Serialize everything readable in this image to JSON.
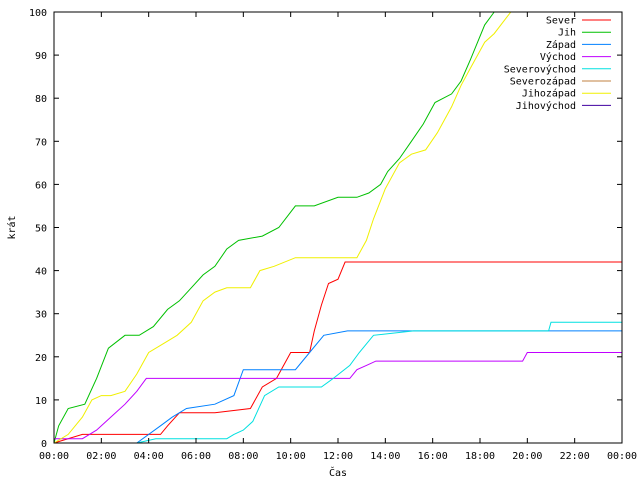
{
  "chart_data": {
    "type": "line",
    "title": "",
    "xlabel": "Čas",
    "ylabel": "krát",
    "xlim": [
      0,
      24
    ],
    "ylim": [
      0,
      100
    ],
    "x_ticks": [
      {
        "value": 0,
        "label": "00:00"
      },
      {
        "value": 2,
        "label": "02:00"
      },
      {
        "value": 4,
        "label": "04:00"
      },
      {
        "value": 6,
        "label": "06:00"
      },
      {
        "value": 8,
        "label": "08:00"
      },
      {
        "value": 10,
        "label": "10:00"
      },
      {
        "value": 12,
        "label": "12:00"
      },
      {
        "value": 14,
        "label": "14:00"
      },
      {
        "value": 16,
        "label": "16:00"
      },
      {
        "value": 18,
        "label": "18:00"
      },
      {
        "value": 20,
        "label": "20:00"
      },
      {
        "value": 22,
        "label": "22:00"
      },
      {
        "value": 24,
        "label": "00:00"
      }
    ],
    "y_ticks": [
      0,
      10,
      20,
      30,
      40,
      50,
      60,
      70,
      80,
      90,
      100
    ],
    "legend_position": "top-right",
    "series": [
      {
        "name": "Sever",
        "color": "#ff0000",
        "x": [
          0,
          1.2,
          4.5,
          4.8,
          5.3,
          6.8,
          8.3,
          8.8,
          9.4,
          10.0,
          10.8,
          11.0,
          11.3,
          11.6,
          12.0,
          12.3,
          24
        ],
        "y": [
          0,
          2,
          2,
          4,
          7,
          7,
          8,
          13,
          15,
          21,
          21,
          26,
          32,
          37,
          38,
          42,
          42
        ]
      },
      {
        "name": "Jih",
        "color": "#00c000",
        "x": [
          0,
          0.2,
          0.6,
          1.3,
          1.8,
          2.3,
          3.0,
          3.6,
          4.2,
          4.8,
          5.3,
          5.8,
          6.3,
          6.8,
          7.3,
          7.8,
          8.8,
          9.5,
          10.2,
          11.0,
          12.0,
          12.8,
          13.3,
          13.8,
          14.1,
          14.6,
          15.1,
          15.6,
          16.1,
          16.8,
          17.2,
          17.6,
          18.2,
          18.6
        ],
        "y": [
          0,
          4,
          8,
          9,
          15,
          22,
          25,
          25,
          27,
          31,
          33,
          36,
          39,
          41,
          45,
          47,
          48,
          50,
          55,
          55,
          57,
          57,
          58,
          60,
          63,
          66,
          70,
          74,
          79,
          81,
          84,
          89,
          97,
          100
        ]
      },
      {
        "name": "Západ",
        "color": "#0080ff",
        "x": [
          0,
          3.5,
          4.5,
          5.0,
          5.6,
          6.8,
          7.6,
          8.0,
          8.5,
          10.2,
          10.8,
          11.4,
          12.4,
          15.1,
          24
        ],
        "y": [
          0,
          0,
          4,
          6,
          8,
          9,
          11,
          17,
          17,
          17,
          21,
          25,
          26,
          26,
          26
        ]
      },
      {
        "name": "Východ",
        "color": "#c000ff",
        "x": [
          0,
          1.2,
          1.8,
          2.4,
          3.0,
          3.5,
          3.9,
          8.0,
          12.5,
          12.8,
          13.2,
          13.6,
          14.2,
          19.8,
          20.0,
          24
        ],
        "y": [
          1,
          1,
          3,
          6,
          9,
          12,
          15,
          15,
          15,
          17,
          18,
          19,
          19,
          19,
          21,
          21
        ]
      },
      {
        "name": "Severovýchod",
        "color": "#00e0e0",
        "x": [
          0,
          3.5,
          4.3,
          7.3,
          7.6,
          8.0,
          8.4,
          8.9,
          9.5,
          10.2,
          11.3,
          11.8,
          12.5,
          12.9,
          13.5,
          15.2,
          17.0,
          20.9,
          21.0,
          24
        ],
        "y": [
          0,
          0,
          1,
          1,
          2,
          3,
          5,
          11,
          13,
          13,
          13,
          15,
          18,
          21,
          25,
          26,
          26,
          26,
          28,
          28
        ]
      },
      {
        "name": "Severozápad",
        "color": "#c08040",
        "x": [
          0,
          24
        ],
        "y": [
          0,
          0
        ]
      },
      {
        "name": "Jihozápad",
        "color": "#f0f000",
        "x": [
          0,
          0.6,
          1.2,
          1.6,
          2.0,
          2.4,
          3.0,
          3.5,
          4.0,
          4.6,
          5.2,
          5.8,
          6.3,
          6.8,
          7.3,
          7.8,
          8.3,
          8.7,
          9.3,
          10.2,
          11.5,
          12.8,
          13.2,
          13.5,
          14.0,
          14.6,
          15.1,
          15.7,
          16.2,
          16.8,
          17.2,
          17.6,
          18.2,
          18.6,
          19.3
        ],
        "y": [
          0,
          2,
          6,
          10,
          11,
          11,
          12,
          16,
          21,
          23,
          25,
          28,
          33,
          35,
          36,
          36,
          36,
          40,
          41,
          43,
          43,
          43,
          47,
          52,
          59,
          65,
          67,
          68,
          72,
          78,
          83,
          87,
          93,
          95,
          100
        ]
      },
      {
        "name": "Jihovýchod",
        "color": "#4000a0",
        "x": [
          0,
          24
        ],
        "y": [
          0,
          0
        ]
      }
    ]
  }
}
